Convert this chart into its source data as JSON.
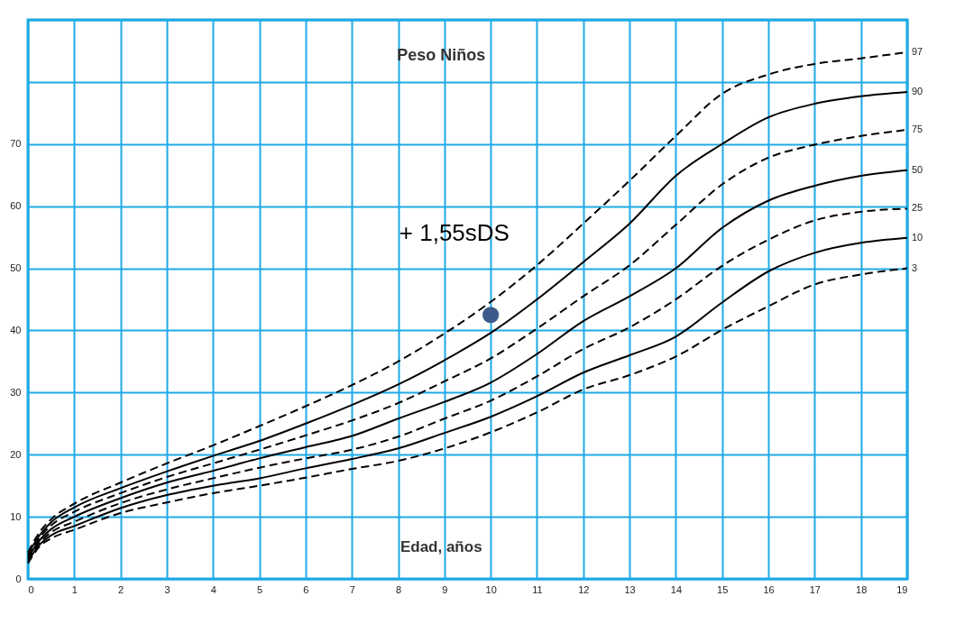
{
  "chart_data": {
    "type": "line",
    "title": "Peso Niños",
    "xlabel": "Edad, años",
    "x": [
      0,
      0.25,
      0.5,
      1,
      2,
      3,
      4,
      5,
      6,
      7,
      8,
      9,
      10,
      11,
      12,
      13,
      14,
      15,
      16,
      17,
      18,
      19
    ],
    "xlim": [
      0,
      19
    ],
    "ylim": [
      0,
      90
    ],
    "xticks": [
      0,
      1,
      2,
      3,
      4,
      5,
      6,
      7,
      8,
      9,
      10,
      11,
      12,
      13,
      14,
      15,
      16,
      17,
      18,
      19
    ],
    "yticks": [
      0,
      10,
      20,
      30,
      40,
      50,
      60,
      70,
      {
        "value": 80,
        "label": null
      },
      {
        "value": 90,
        "label": null
      }
    ],
    "grid": true,
    "marker": "none",
    "series": [
      {
        "name": "97",
        "color": "#000000",
        "line_style": "dashed",
        "values": [
          4.3,
          7.5,
          9.6,
          12.1,
          15.5,
          18.6,
          21.5,
          24.6,
          27.8,
          31.2,
          35.0,
          39.5,
          44.6,
          50.5,
          57.2,
          64.1,
          71.3,
          78.1,
          81.2,
          82.9,
          83.8,
          84.8
        ]
      },
      {
        "name": "90",
        "color": "#000000",
        "line_style": "solid",
        "values": [
          4.0,
          7.0,
          9.1,
          11.5,
          14.6,
          17.3,
          19.8,
          22.2,
          25.0,
          28.0,
          31.3,
          35.2,
          39.6,
          45.0,
          51.0,
          57.2,
          64.9,
          70.0,
          74.3,
          76.5,
          77.7,
          78.4
        ]
      },
      {
        "name": "75",
        "color": "#000000",
        "line_style": "dashed",
        "values": [
          3.7,
          6.6,
          8.6,
          10.8,
          13.8,
          16.4,
          18.6,
          20.8,
          23.1,
          25.5,
          28.3,
          31.8,
          35.5,
          40.3,
          45.5,
          50.5,
          57.0,
          63.5,
          67.8,
          69.9,
          71.3,
          72.3
        ]
      },
      {
        "name": "50",
        "color": "#000000",
        "line_style": "solid",
        "values": [
          3.4,
          6.2,
          8.0,
          10.0,
          13.0,
          15.5,
          17.4,
          19.4,
          21.2,
          23.0,
          25.8,
          28.5,
          31.6,
          36.2,
          41.5,
          45.5,
          50.0,
          56.5,
          60.9,
          63.3,
          64.9,
          65.8
        ]
      },
      {
        "name": "25",
        "color": "#000000",
        "line_style": "dashed",
        "values": [
          3.1,
          5.8,
          7.5,
          9.2,
          12.2,
          14.4,
          16.2,
          17.9,
          19.4,
          20.8,
          22.9,
          25.8,
          28.7,
          32.6,
          37.0,
          40.5,
          45.0,
          50.4,
          54.6,
          57.7,
          59.1,
          59.6
        ]
      },
      {
        "name": "10",
        "color": "#000000",
        "line_style": "solid",
        "values": [
          2.8,
          5.5,
          7.0,
          8.5,
          11.4,
          13.5,
          15.0,
          16.2,
          17.8,
          19.3,
          21.0,
          23.5,
          26.1,
          29.4,
          33.2,
          36.0,
          39.0,
          44.5,
          49.5,
          52.5,
          54.1,
          54.9
        ]
      },
      {
        "name": "3",
        "color": "#000000",
        "line_style": "dashed",
        "values": [
          2.5,
          5.2,
          6.5,
          7.9,
          10.6,
          12.3,
          13.8,
          15.0,
          16.3,
          17.7,
          19.0,
          21.0,
          23.6,
          26.8,
          30.5,
          32.8,
          35.8,
          40.1,
          43.9,
          47.4,
          49.0,
          50.0
        ]
      },
      {
        "type": "scatter",
        "color": "#3c5a8c",
        "marker": "circle",
        "x": [
          10
        ],
        "values": [
          42.5
        ]
      }
    ],
    "annotations": [
      "+ 1,55sDS"
    ]
  }
}
